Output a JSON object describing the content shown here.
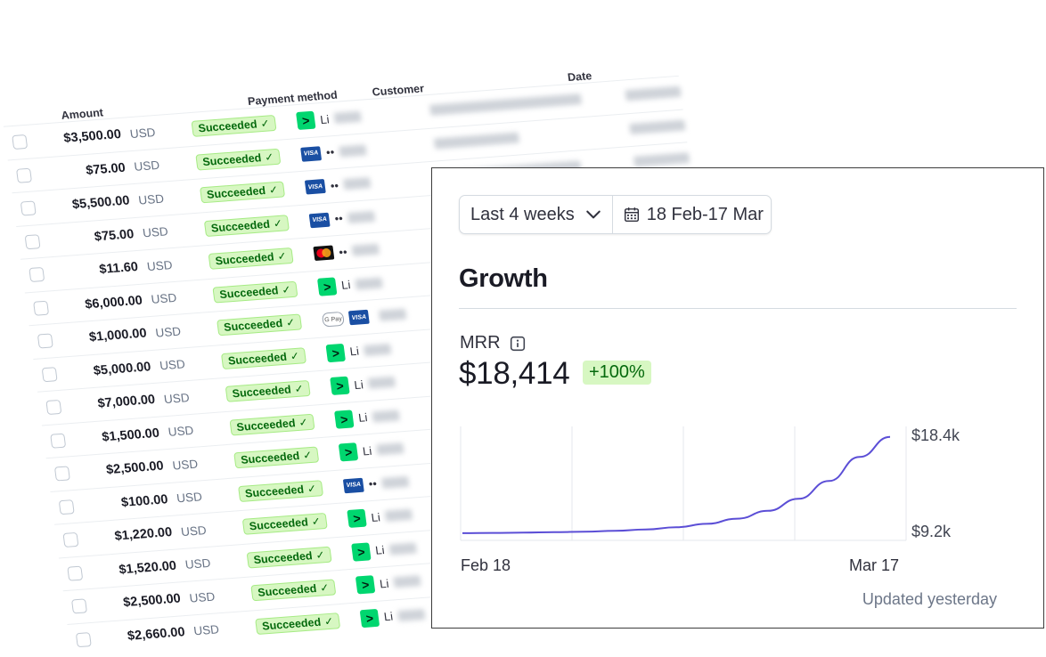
{
  "table": {
    "headers": {
      "amount": "Amount",
      "payment_method": "Payment method",
      "customer": "Customer",
      "date": "Date"
    },
    "rows": [
      {
        "amount": "$3,500.00",
        "currency": "USD",
        "status": "Succeeded",
        "method": "link",
        "method_text": "Li"
      },
      {
        "amount": "$75.00",
        "currency": "USD",
        "status": "Succeeded",
        "method": "visa",
        "method_text": "••"
      },
      {
        "amount": "$5,500.00",
        "currency": "USD",
        "status": "Succeeded",
        "method": "visa",
        "method_text": "••"
      },
      {
        "amount": "$75.00",
        "currency": "USD",
        "status": "Succeeded",
        "method": "visa",
        "method_text": "••"
      },
      {
        "amount": "$11.60",
        "currency": "USD",
        "status": "Succeeded",
        "method": "mastercard",
        "method_text": "••"
      },
      {
        "amount": "$6,000.00",
        "currency": "USD",
        "status": "Succeeded",
        "method": "link",
        "method_text": "Li"
      },
      {
        "amount": "$1,000.00",
        "currency": "USD",
        "status": "Succeeded",
        "method": "gpay-visa",
        "method_text": ""
      },
      {
        "amount": "$5,000.00",
        "currency": "USD",
        "status": "Succeeded",
        "method": "link",
        "method_text": "Li"
      },
      {
        "amount": "$7,000.00",
        "currency": "USD",
        "status": "Succeeded",
        "method": "link",
        "method_text": "Li"
      },
      {
        "amount": "$1,500.00",
        "currency": "USD",
        "status": "Succeeded",
        "method": "link",
        "method_text": "Li"
      },
      {
        "amount": "$2,500.00",
        "currency": "USD",
        "status": "Succeeded",
        "method": "link",
        "method_text": "Li"
      },
      {
        "amount": "$100.00",
        "currency": "USD",
        "status": "Succeeded",
        "method": "visa",
        "method_text": "••"
      },
      {
        "amount": "$1,220.00",
        "currency": "USD",
        "status": "Succeeded",
        "method": "link",
        "method_text": "Li"
      },
      {
        "amount": "$1,520.00",
        "currency": "USD",
        "status": "Succeeded",
        "method": "link",
        "method_text": "Li"
      },
      {
        "amount": "$2,500.00",
        "currency": "USD",
        "status": "Succeeded",
        "method": "link",
        "method_text": "Li"
      },
      {
        "amount": "$2,660.00",
        "currency": "USD",
        "status": "Succeeded",
        "method": "link",
        "method_text": "Li"
      }
    ]
  },
  "card": {
    "range_label": "Last 4 weeks",
    "date_range": "18 Feb-17 Mar",
    "title": "Growth",
    "metric_label": "MRR",
    "metric_value": "$18,414",
    "metric_change": "+100%",
    "updated": "Updated yesterday",
    "accent_color": "#5b4ed6"
  },
  "chart_data": {
    "type": "line",
    "title": "",
    "xlabel": "",
    "ylabel": "",
    "x_tick_labels": [
      "Feb 18",
      "Mar 17"
    ],
    "y_tick_labels": [
      "$9.2k",
      "$18.4k"
    ],
    "ylim": [
      9200,
      18400
    ],
    "grid": true,
    "series": [
      {
        "color": "#5b4ed6",
        "values": [
          9207,
          9230,
          9260,
          9300,
          9350,
          9430,
          9560,
          9770,
          10100,
          10600,
          11350,
          12500,
          14200,
          16500,
          18414
        ]
      }
    ]
  }
}
